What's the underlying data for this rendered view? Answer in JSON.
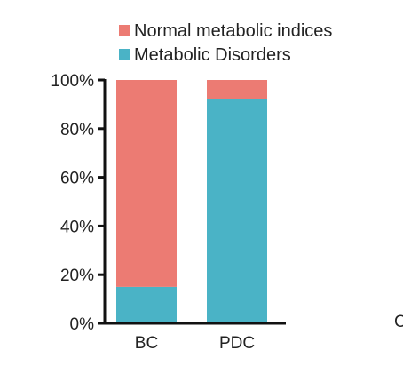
{
  "chart_data": {
    "type": "bar",
    "stacked": true,
    "categories": [
      "BC",
      "PDC"
    ],
    "series": [
      {
        "name": "Metabolic Disorders",
        "color": "#4ab3c6",
        "values": [
          15,
          92
        ]
      },
      {
        "name": "Normal metabolic indices",
        "color": "#ec7b73",
        "values": [
          85,
          8
        ]
      }
    ],
    "legend_order": [
      "Normal metabolic indices",
      "Metabolic Disorders"
    ],
    "yticks": [
      "0%",
      "20%",
      "40%",
      "60%",
      "80%",
      "100%"
    ],
    "ylim": [
      0,
      100
    ],
    "legend_position": "top",
    "grid": false,
    "axis_color": "#111111"
  },
  "edge_text": "C"
}
